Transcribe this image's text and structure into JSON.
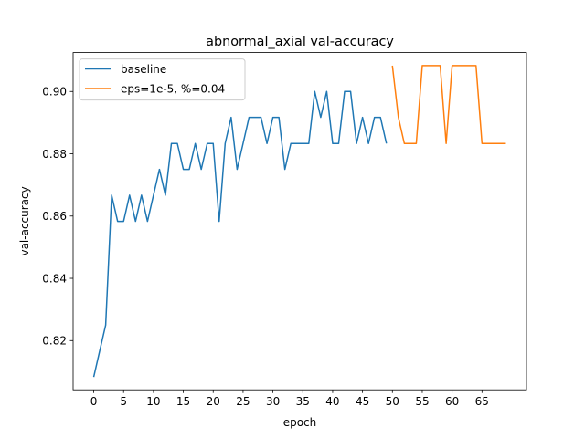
{
  "chart_data": {
    "type": "line",
    "title": "abnormal_axial val-accuracy",
    "xlabel": "epoch",
    "ylabel": "val-accuracy",
    "xlim": [
      -3.45,
      72.45
    ],
    "ylim": [
      0.8042,
      0.9125
    ],
    "xticks": [
      0,
      5,
      10,
      15,
      20,
      25,
      30,
      35,
      40,
      45,
      50,
      55,
      60,
      65
    ],
    "yticks": [
      0.82,
      0.84,
      0.86,
      0.88,
      0.9
    ],
    "ytick_labels": [
      "0.82",
      "0.84",
      "0.86",
      "0.88",
      "0.90"
    ],
    "grid": false,
    "legend_position": "upper-left",
    "series": [
      {
        "name": "baseline",
        "color": "#1f77b4",
        "x": [
          0,
          1,
          2,
          3,
          4,
          5,
          6,
          7,
          8,
          9,
          10,
          11,
          12,
          13,
          14,
          15,
          16,
          17,
          18,
          19,
          20,
          21,
          22,
          23,
          24,
          25,
          26,
          27,
          28,
          29,
          30,
          31,
          32,
          33,
          34,
          35,
          36,
          37,
          38,
          39,
          40,
          41,
          42,
          43,
          44,
          45,
          46,
          47,
          48,
          49
        ],
        "y": [
          0.8083,
          0.8167,
          0.825,
          0.8667,
          0.8583,
          0.8583,
          0.8667,
          0.8583,
          0.8667,
          0.8583,
          0.8667,
          0.875,
          0.8667,
          0.8833,
          0.8833,
          0.875,
          0.875,
          0.8833,
          0.875,
          0.8833,
          0.8833,
          0.8583,
          0.8833,
          0.8917,
          0.875,
          0.8833,
          0.8917,
          0.8917,
          0.8917,
          0.8833,
          0.8917,
          0.8917,
          0.875,
          0.8833,
          0.8833,
          0.8833,
          0.8833,
          0.9,
          0.8917,
          0.9,
          0.8833,
          0.8833,
          0.9,
          0.9,
          0.8833,
          0.8917,
          0.8833,
          0.8917,
          0.8917,
          0.8833
        ]
      },
      {
        "name": "eps=1e-5, %=0.04",
        "color": "#ff7f0e",
        "x": [
          50,
          51,
          52,
          53,
          54,
          55,
          56,
          57,
          58,
          59,
          60,
          61,
          62,
          63,
          64,
          65,
          66,
          67,
          68,
          69
        ],
        "y": [
          0.9083,
          0.8917,
          0.8833,
          0.8833,
          0.8833,
          0.9083,
          0.9083,
          0.9083,
          0.9083,
          0.8833,
          0.9083,
          0.9083,
          0.9083,
          0.9083,
          0.9083,
          0.8833,
          0.8833,
          0.8833,
          0.8833,
          0.8833
        ]
      }
    ]
  }
}
